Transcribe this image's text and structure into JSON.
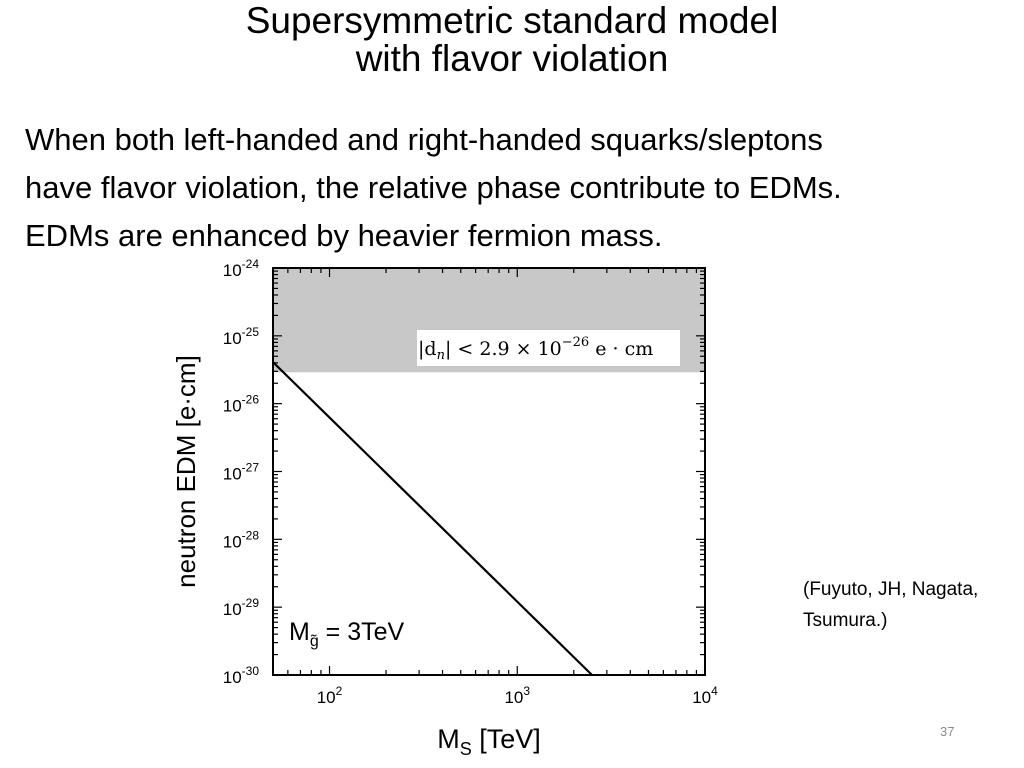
{
  "slide": {
    "title_lines": [
      "Supersymmetric standard model",
      "with flavor violation"
    ],
    "body_lines": [
      "When both left-handed and right-handed squarks/sleptons",
      "have flavor violation, the relative phase contribute to EDMs.",
      "EDMs are enhanced by heavier fermion mass."
    ],
    "citation_lines": [
      "(Fuyuto, JH, Nagata,",
      "Tsumura.)"
    ],
    "slide_number": "37"
  },
  "chart_data": {
    "type": "line",
    "xscale": "log",
    "yscale": "log",
    "xlim": [
      50,
      10000
    ],
    "ylim": [
      1e-30,
      1e-24
    ],
    "xlabel": "M",
    "xlabel_sub": "S",
    "xlabel_unit": " [TeV]",
    "ylabel": "neutron EDM [e·cm]",
    "x_ticks": [
      {
        "value": 100,
        "base": "10",
        "exp": "2"
      },
      {
        "value": 1000,
        "base": "10",
        "exp": "3"
      },
      {
        "value": 10000,
        "base": "10",
        "exp": "4"
      }
    ],
    "y_ticks": [
      {
        "value": 1e-24,
        "base": "10",
        "exp": "-24"
      },
      {
        "value": 1e-25,
        "base": "10",
        "exp": "-25"
      },
      {
        "value": 1e-26,
        "base": "10",
        "exp": "-26"
      },
      {
        "value": 1e-27,
        "base": "10",
        "exp": "-27"
      },
      {
        "value": 1e-28,
        "base": "10",
        "exp": "-28"
      },
      {
        "value": 1e-29,
        "base": "10",
        "exp": "-29"
      },
      {
        "value": 1e-30,
        "base": "10",
        "exp": "-30"
      }
    ],
    "series": [
      {
        "points": [
          [
            50,
            4.1e-26
          ],
          [
            2500,
            1e-30
          ]
        ],
        "color": "#000000"
      }
    ],
    "excluded_region": {
      "y_from": 2.9e-26,
      "y_to": 1e-24,
      "color": "#c8c8c8"
    },
    "bound_label": {
      "lhs": "|d",
      "lhs_sub": "n",
      "relation": "| < 2.9 × 10",
      "exp": "−26",
      "unit": " e · cm"
    },
    "annotation": {
      "main": "M",
      "sub": "g̃",
      "rest": " = 3TeV"
    }
  }
}
